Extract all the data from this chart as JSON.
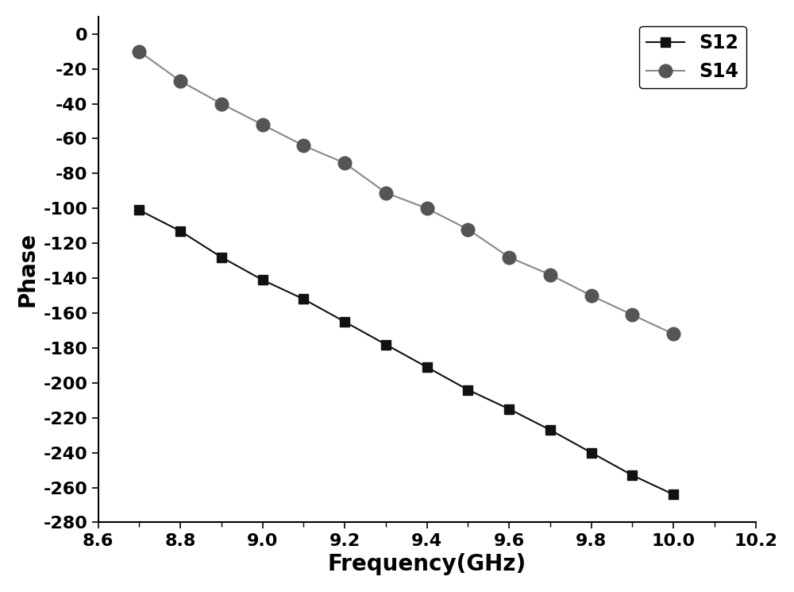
{
  "S12_x": [
    8.7,
    8.8,
    8.9,
    9.0,
    9.1,
    9.2,
    9.3,
    9.4,
    9.5,
    9.6,
    9.7,
    9.8,
    9.9,
    10.0
  ],
  "S12_y": [
    -101,
    -113,
    -128,
    -141,
    -152,
    -165,
    -178,
    -191,
    -204,
    -215,
    -227,
    -240,
    -253,
    -264
  ],
  "S14_x": [
    8.7,
    8.8,
    8.9,
    9.0,
    9.1,
    9.2,
    9.3,
    9.4,
    9.5,
    9.6,
    9.7,
    9.8,
    9.9,
    10.0
  ],
  "S14_y": [
    -10,
    -27,
    -40,
    -52,
    -64,
    -74,
    -91,
    -100,
    -112,
    -128,
    -138,
    -150,
    -161,
    -172
  ],
  "S12_color": "#111111",
  "S14_color": "#555555",
  "S12_marker": "s",
  "S14_marker": "o",
  "S12_markersize": 9,
  "S14_markersize": 12,
  "line_color_S12": "#111111",
  "line_color_S14": "#888888",
  "xlabel": "Frequency(GHz)",
  "ylabel": "Phase",
  "xlim": [
    8.6,
    10.2
  ],
  "ylim": [
    -280,
    10
  ],
  "xticks_major": [
    8.6,
    8.8,
    9.0,
    9.2,
    9.4,
    9.6,
    9.8,
    10.0,
    10.2
  ],
  "xticks_minor": [
    8.7,
    8.9,
    9.1,
    9.3,
    9.5,
    9.7,
    9.9,
    10.1
  ],
  "yticks_major": [
    0,
    -20,
    -40,
    -60,
    -80,
    -100,
    -120,
    -140,
    -160,
    -180,
    -200,
    -220,
    -240,
    -260,
    -280
  ],
  "xlabel_fontsize": 20,
  "ylabel_fontsize": 20,
  "tick_fontsize": 16,
  "legend_fontsize": 17,
  "background_color": "#ffffff",
  "legend_loc": "upper right",
  "spine_linewidth": 1.5,
  "line_linewidth": 1.5
}
